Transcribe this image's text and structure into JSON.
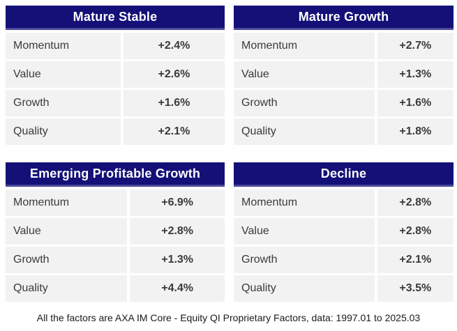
{
  "colors": {
    "header_bg": "#141077",
    "header_text": "#ffffff",
    "header_edge": "#4c4a99",
    "row_bg": "#f2f2f2",
    "row_text": "#3a3a3a",
    "page_bg": "#ffffff",
    "footer_text": "#1a1a1a"
  },
  "tables": [
    {
      "title": "Mature Stable",
      "rows": [
        {
          "label": "Momentum",
          "value": "+2.4%"
        },
        {
          "label": "Value",
          "value": "+2.6%"
        },
        {
          "label": "Growth",
          "value": "+1.6%"
        },
        {
          "label": "Quality",
          "value": "+2.1%"
        }
      ]
    },
    {
      "title": "Mature Growth",
      "rows": [
        {
          "label": "Momentum",
          "value": "+2.7%"
        },
        {
          "label": "Value",
          "value": "+1.3%"
        },
        {
          "label": "Growth",
          "value": "+1.6%"
        },
        {
          "label": "Quality",
          "value": "+1.8%"
        }
      ]
    },
    {
      "title": "Emerging Profitable Growth",
      "rows": [
        {
          "label": "Momentum",
          "value": "+6.9%"
        },
        {
          "label": "Value",
          "value": "+2.8%"
        },
        {
          "label": "Growth",
          "value": "+1.3%"
        },
        {
          "label": "Quality",
          "value": "+4.4%"
        }
      ]
    },
    {
      "title": "Decline",
      "rows": [
        {
          "label": "Momentum",
          "value": "+2.8%"
        },
        {
          "label": "Value",
          "value": "+2.8%"
        },
        {
          "label": "Growth",
          "value": "+2.1%"
        },
        {
          "label": "Quality",
          "value": "+3.5%"
        }
      ]
    }
  ],
  "footnote": "All the factors are AXA IM Core - Equity QI Proprietary Factors, data: 1997.01 to 2025.03",
  "chart_data": [
    {
      "type": "table",
      "title": "Mature Stable",
      "categories": [
        "Momentum",
        "Value",
        "Growth",
        "Quality"
      ],
      "values": [
        2.4,
        2.6,
        1.6,
        2.1
      ],
      "value_labels": [
        "+2.4%",
        "+2.6%",
        "+1.6%",
        "+2.1%"
      ],
      "unit": "%"
    },
    {
      "type": "table",
      "title": "Mature Growth",
      "categories": [
        "Momentum",
        "Value",
        "Growth",
        "Quality"
      ],
      "values": [
        2.7,
        1.3,
        1.6,
        1.8
      ],
      "value_labels": [
        "+2.7%",
        "+1.3%",
        "+1.6%",
        "+1.8%"
      ],
      "unit": "%"
    },
    {
      "type": "table",
      "title": "Emerging Profitable Growth",
      "categories": [
        "Momentum",
        "Value",
        "Growth",
        "Quality"
      ],
      "values": [
        6.9,
        2.8,
        1.3,
        4.4
      ],
      "value_labels": [
        "+6.9%",
        "+2.8%",
        "+1.3%",
        "+4.4%"
      ],
      "unit": "%"
    },
    {
      "type": "table",
      "title": "Decline",
      "categories": [
        "Momentum",
        "Value",
        "Growth",
        "Quality"
      ],
      "values": [
        2.8,
        2.8,
        2.1,
        3.5
      ],
      "value_labels": [
        "+2.8%",
        "+2.8%",
        "+2.1%",
        "+3.5%"
      ],
      "unit": "%"
    }
  ]
}
